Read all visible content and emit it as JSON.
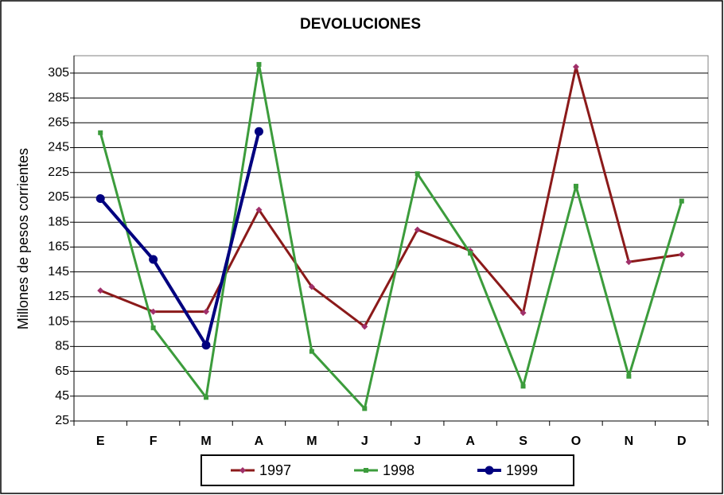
{
  "chart_data": {
    "type": "line",
    "title": "DEVOLUCIONES",
    "y_label": "Millones de pesos corrientes",
    "categories": [
      "E",
      "F",
      "M",
      "A",
      "M",
      "J",
      "J",
      "A",
      "S",
      "O",
      "N",
      "D"
    ],
    "series": [
      {
        "name": "1997",
        "color": "#8b1a1a",
        "values": [
          130,
          113,
          113,
          195,
          133,
          101,
          179,
          162,
          112,
          310,
          153,
          159
        ]
      },
      {
        "name": "1998",
        "color": "#3c9c3c",
        "values": [
          257,
          100,
          44,
          312,
          81,
          35,
          224,
          160,
          53,
          214,
          61,
          202
        ]
      },
      {
        "name": "1999",
        "color": "#00007f",
        "values": [
          204,
          155,
          86,
          258,
          null,
          null,
          null,
          null,
          null,
          null,
          null,
          null
        ]
      }
    ],
    "ylim": [
      25,
      319
    ],
    "yticks": [
      25,
      45,
      65,
      85,
      105,
      125,
      145,
      165,
      185,
      205,
      225,
      245,
      265,
      285,
      305
    ],
    "grid": true
  }
}
